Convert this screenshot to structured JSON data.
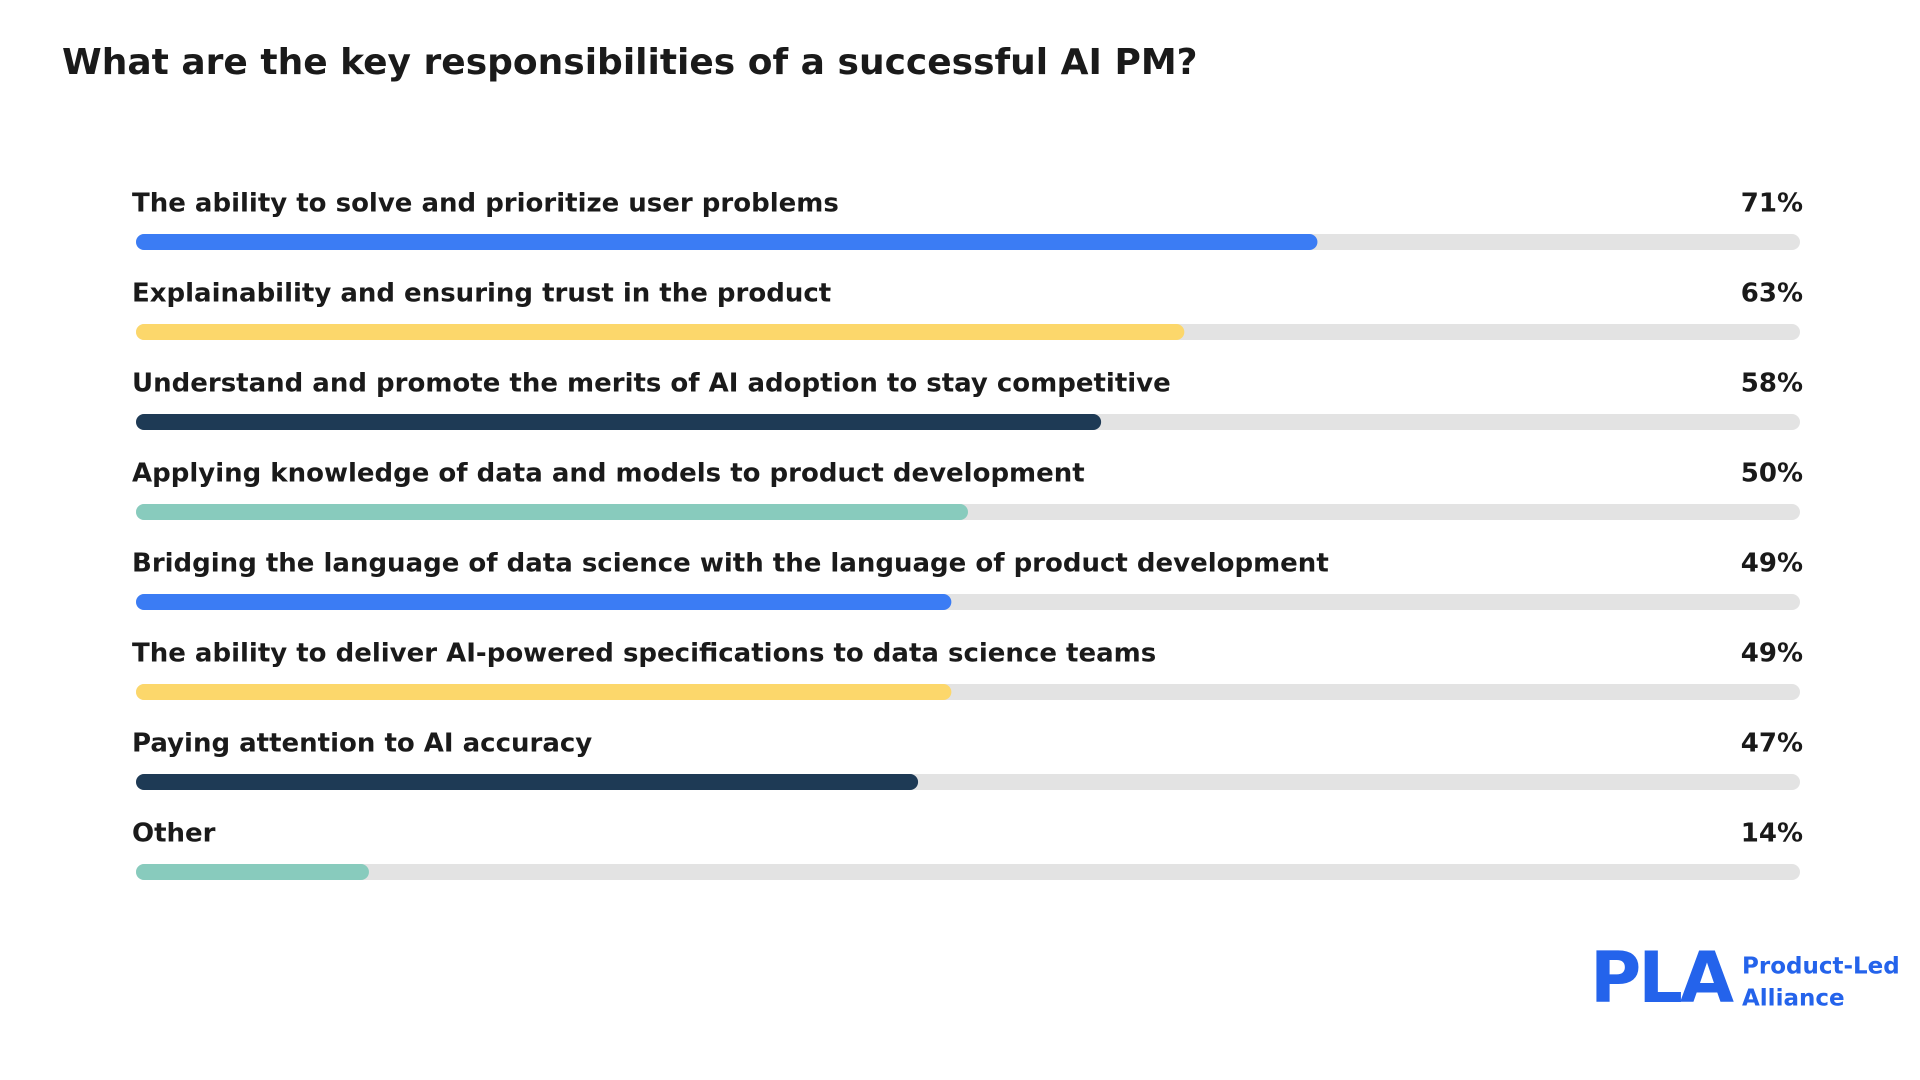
{
  "chart_data": {
    "type": "bar",
    "title": "What are the key responsibilities of a successful AI PM?",
    "categories": [
      "The ability to solve and prioritize user problems",
      "Explainability and ensuring trust in the product",
      "Understand and promote the merits of AI adoption to stay competitive",
      "Applying knowledge of data and models to product development",
      "Bridging the language of data science with the language of product development",
      "The ability to deliver AI-powered specifications to data science teams",
      "Paying attention to AI accuracy",
      "Other"
    ],
    "values": [
      71,
      63,
      58,
      50,
      49,
      49,
      47,
      14
    ],
    "value_labels": [
      "71%",
      "63%",
      "58%",
      "50%",
      "49%",
      "49%",
      "47%",
      "14%"
    ],
    "colors": [
      "#3b7cf4",
      "#fcd76b",
      "#1e3a55",
      "#88cbbd",
      "#3b7cf4",
      "#fcd76b",
      "#1e3a55",
      "#88cbbd"
    ],
    "xlim": [
      0,
      100
    ]
  },
  "logo": {
    "mark": "PLA",
    "name": [
      "Product-Led",
      "Alliance"
    ]
  }
}
